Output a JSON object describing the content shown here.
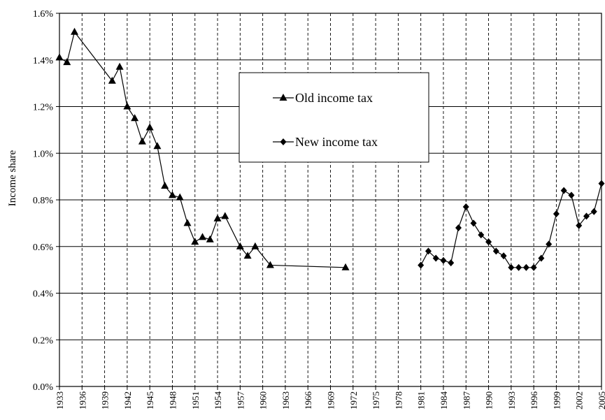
{
  "chart_data": {
    "type": "line",
    "xlabel": "",
    "ylabel": "Income share",
    "xlim": [
      1933,
      2005
    ],
    "ylim": [
      0.0,
      0.016
    ],
    "grid": {
      "horizontal": "solid",
      "vertical": "dashed"
    },
    "legend_placement": "upper-center",
    "y_ticks": [
      "0.0%",
      "0.2%",
      "0.4%",
      "0.6%",
      "0.8%",
      "1.0%",
      "1.2%",
      "1.4%",
      "1.6%"
    ],
    "y_tick_values": [
      0.0,
      0.002,
      0.004,
      0.006,
      0.008,
      0.01,
      0.012,
      0.014,
      0.016
    ],
    "x_ticks": [
      1933,
      1936,
      1939,
      1942,
      1945,
      1948,
      1951,
      1954,
      1957,
      1960,
      1963,
      1966,
      1969,
      1972,
      1975,
      1978,
      1981,
      1984,
      1987,
      1990,
      1993,
      1996,
      1999,
      2002,
      2005
    ],
    "series": [
      {
        "name": "Old income tax",
        "marker": "triangle",
        "points": [
          [
            1933,
            0.0141
          ],
          [
            1934,
            0.0139
          ],
          [
            1935,
            0.0152
          ],
          [
            1940,
            0.0131
          ],
          [
            1941,
            0.0137
          ],
          [
            1942,
            0.012
          ],
          [
            1943,
            0.0115
          ],
          [
            1944,
            0.0105
          ],
          [
            1945,
            0.0111
          ],
          [
            1946,
            0.0103
          ],
          [
            1947,
            0.0086
          ],
          [
            1948,
            0.0082
          ],
          [
            1949,
            0.0081
          ],
          [
            1950,
            0.007
          ],
          [
            1951,
            0.0062
          ],
          [
            1952,
            0.0064
          ],
          [
            1953,
            0.0063
          ],
          [
            1954,
            0.0072
          ],
          [
            1955,
            0.0073
          ],
          [
            1957,
            0.006
          ],
          [
            1958,
            0.0056
          ],
          [
            1959,
            0.006
          ],
          [
            1961,
            0.0052
          ],
          [
            1971,
            0.0051
          ]
        ]
      },
      {
        "name": "New income tax",
        "marker": "diamond",
        "points": [
          [
            1981,
            0.0052
          ],
          [
            1982,
            0.0058
          ],
          [
            1983,
            0.0055
          ],
          [
            1984,
            0.0054
          ],
          [
            1985,
            0.0053
          ],
          [
            1986,
            0.0068
          ],
          [
            1987,
            0.0077
          ],
          [
            1988,
            0.007
          ],
          [
            1989,
            0.0065
          ],
          [
            1990,
            0.0062
          ],
          [
            1991,
            0.0058
          ],
          [
            1992,
            0.0056
          ],
          [
            1993,
            0.0051
          ],
          [
            1994,
            0.0051
          ],
          [
            1995,
            0.0051
          ],
          [
            1996,
            0.0051
          ],
          [
            1997,
            0.0055
          ],
          [
            1998,
            0.0061
          ],
          [
            1999,
            0.0074
          ],
          [
            2000,
            0.0084
          ],
          [
            2001,
            0.0082
          ],
          [
            2002,
            0.0069
          ],
          [
            2003,
            0.0073
          ],
          [
            2004,
            0.0075
          ],
          [
            2005,
            0.0087
          ]
        ]
      }
    ]
  }
}
